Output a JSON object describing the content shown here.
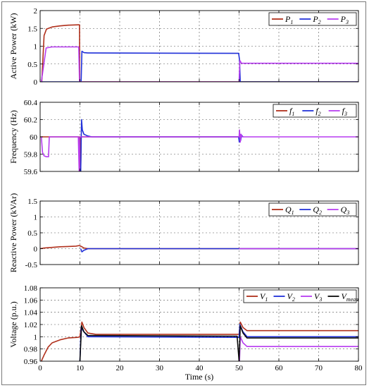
{
  "chart_data": [
    {
      "type": "line",
      "ylabel": "Active Power (kW)",
      "xlabel": "",
      "xlim": [
        0,
        80
      ],
      "ylim": [
        0,
        2
      ],
      "yticks": [
        0,
        0.5,
        1,
        1.5,
        2
      ],
      "ytick_labels": [
        "0",
        "0.5",
        "1",
        "1.5",
        "2"
      ],
      "grid": true,
      "legend_position": "top-right",
      "series": [
        {
          "name": "P",
          "sub": "1",
          "color": "#b0301c",
          "points": [
            [
              0,
              0
            ],
            [
              0.4,
              0
            ],
            [
              1,
              1.3
            ],
            [
              1.6,
              1.48
            ],
            [
              3,
              1.54
            ],
            [
              5,
              1.57
            ],
            [
              7,
              1.59
            ],
            [
              9.5,
              1.6
            ],
            [
              9.9,
              1.6
            ],
            [
              9.95,
              0
            ],
            [
              80,
              0
            ]
          ]
        },
        {
          "name": "P",
          "sub": "2",
          "color": "#1f2fd8",
          "points": [
            [
              0,
              0
            ],
            [
              10.3,
              0
            ],
            [
              10.5,
              0.86
            ],
            [
              11,
              0.82
            ],
            [
              12,
              0.81
            ],
            [
              49.5,
              0.8
            ],
            [
              49.9,
              0.8
            ],
            [
              50.1,
              0.62
            ],
            [
              50.3,
              0
            ],
            [
              80,
              0
            ]
          ]
        },
        {
          "name": "P",
          "sub": "3",
          "color": "#b73cf0",
          "points": [
            [
              0,
              0
            ],
            [
              0.3,
              0
            ],
            [
              1.5,
              0.95
            ],
            [
              3,
              0.98
            ],
            [
              9.7,
              0.98
            ],
            [
              9.9,
              0
            ],
            [
              50,
              0
            ],
            [
              50.2,
              0.6
            ],
            [
              50.6,
              0.52
            ],
            [
              80,
              0.52
            ]
          ]
        }
      ]
    },
    {
      "type": "line",
      "ylabel": "Frequency (Hz)",
      "xlabel": "",
      "xlim": [
        0,
        80
      ],
      "ylim": [
        59.6,
        60.4
      ],
      "yticks": [
        59.6,
        59.8,
        60,
        60.2,
        60.4
      ],
      "ytick_labels": [
        "59.6",
        "59.8",
        "60",
        "60.2",
        "60.4"
      ],
      "grid": true,
      "legend_position": "top-right",
      "series": [
        {
          "name": "f",
          "sub": "1",
          "color": "#b0301c",
          "points": [
            [
              0,
              60
            ],
            [
              9.7,
              60
            ],
            [
              9.8,
              59.82
            ],
            [
              9.9,
              60
            ],
            [
              10.05,
              60
            ],
            [
              10.1,
              59.6
            ],
            [
              10.2,
              59.6
            ],
            [
              10.3,
              60
            ],
            [
              50,
              60
            ],
            [
              50.1,
              60.02
            ],
            [
              50.3,
              60
            ]
          ]
        },
        {
          "name": "f",
          "sub": "2",
          "color": "#1f2fd8",
          "points": [
            [
              10.2,
              59.6
            ],
            [
              10.4,
              60.2
            ],
            [
              10.6,
              60.08
            ],
            [
              11,
              60.03
            ],
            [
              12,
              60.01
            ],
            [
              13,
              60
            ],
            [
              49.9,
              60
            ],
            [
              50.05,
              59.94
            ],
            [
              50.2,
              60.03
            ],
            [
              50.4,
              59.96
            ],
            [
              50.6,
              60.02
            ],
            [
              51,
              60
            ]
          ]
        },
        {
          "name": "f",
          "sub": "3",
          "color": "#b73cf0",
          "points": [
            [
              0.3,
              60
            ],
            [
              0.6,
              59.82
            ],
            [
              1,
              59.78
            ],
            [
              1.6,
              59.77
            ],
            [
              2.1,
              59.77
            ],
            [
              2.3,
              60
            ],
            [
              9.6,
              60
            ],
            [
              9.8,
              59.6
            ],
            [
              9.9,
              59.6
            ],
            [
              9.95,
              60
            ],
            [
              50,
              60
            ],
            [
              50.1,
              60.08
            ],
            [
              50.3,
              59.94
            ],
            [
              50.5,
              60.03
            ],
            [
              50.8,
              60
            ],
            [
              80,
              60
            ]
          ]
        }
      ]
    },
    {
      "type": "line",
      "ylabel": "Reactive Power (kVAr)",
      "xlabel": "",
      "xlim": [
        0,
        80
      ],
      "ylim": [
        -0.5,
        1.5
      ],
      "yticks": [
        -0.5,
        0,
        0.5,
        1,
        1.5
      ],
      "ytick_labels": [
        "-0.5",
        "0",
        "0.5",
        "1",
        "1.5"
      ],
      "grid": true,
      "legend_position": "top-right",
      "series": [
        {
          "name": "Q",
          "sub": "1",
          "color": "#b0301c",
          "points": [
            [
              0,
              0
            ],
            [
              1,
              0.02
            ],
            [
              3,
              0.04
            ],
            [
              5,
              0.06
            ],
            [
              7,
              0.07
            ],
            [
              9,
              0.08
            ],
            [
              9.9,
              0.1
            ],
            [
              10,
              0.09
            ],
            [
              10.5,
              0.06
            ],
            [
              11,
              0.02
            ],
            [
              12,
              0
            ],
            [
              80,
              0
            ]
          ]
        },
        {
          "name": "Q",
          "sub": "2",
          "color": "#1f2fd8",
          "points": [
            [
              10.2,
              0
            ],
            [
              10.5,
              -0.1
            ],
            [
              11,
              -0.05
            ],
            [
              12,
              0
            ],
            [
              80,
              0
            ]
          ]
        },
        {
          "name": "Q",
          "sub": "3",
          "color": "#b73cf0",
          "points": [
            [
              50,
              0
            ],
            [
              80,
              0
            ]
          ]
        }
      ]
    },
    {
      "type": "line",
      "ylabel": "Voltage (p.u.)",
      "xlabel": "Time (s)",
      "xlim": [
        0,
        80
      ],
      "ylim": [
        0.96,
        1.08
      ],
      "yticks": [
        0.96,
        0.98,
        1,
        1.02,
        1.04,
        1.06,
        1.08
      ],
      "ytick_labels": [
        "0.96",
        "0.98",
        "1",
        "1.02",
        "1.04",
        "1.06",
        "1.08"
      ],
      "xticks": [
        0,
        10,
        20,
        30,
        40,
        50,
        60,
        70,
        80
      ],
      "xtick_labels": [
        "0",
        "10",
        "20",
        "30",
        "40",
        "50",
        "60",
        "70",
        "80"
      ],
      "grid": true,
      "legend_position": "top-right",
      "series": [
        {
          "name": "V",
          "sub": "1",
          "color": "#b0301c",
          "points": [
            [
              0.3,
              0.96
            ],
            [
              1,
              0.97
            ],
            [
              2,
              0.983
            ],
            [
              3,
              0.99
            ],
            [
              5,
              0.995
            ],
            [
              7,
              0.998
            ],
            [
              9.5,
              0.999
            ],
            [
              10,
              1.0
            ],
            [
              10.5,
              1.024
            ],
            [
              11,
              1.015
            ],
            [
              12,
              1.006
            ],
            [
              14,
              1.004
            ],
            [
              49.5,
              1.004
            ],
            [
              50,
              1.004
            ],
            [
              50.3,
              1.024
            ],
            [
              51,
              1.015
            ],
            [
              52,
              1.01
            ],
            [
              80,
              1.01
            ]
          ]
        },
        {
          "name": "V",
          "sub": "2",
          "color": "#1f2fd8",
          "points": [
            [
              10,
              0.96
            ],
            [
              10.3,
              1.015
            ],
            [
              11,
              1.008
            ],
            [
              12,
              1.0
            ],
            [
              49.5,
              0.999
            ],
            [
              50,
              0.999
            ],
            [
              50.2,
              1.02
            ],
            [
              51,
              1.008
            ],
            [
              52,
              1.0
            ],
            [
              80,
              1.0
            ]
          ]
        },
        {
          "name": "V",
          "sub": "3",
          "color": "#b73cf0",
          "points": [
            [
              50.1,
              0.96
            ],
            [
              50.3,
              1.0
            ],
            [
              51,
              0.99
            ],
            [
              52,
              0.984
            ],
            [
              80,
              0.984
            ]
          ]
        },
        {
          "name": "V",
          "sub": "mean",
          "color": "#0a0a0a",
          "points": [
            [
              10,
              0.96
            ],
            [
              10.4,
              1.018
            ],
            [
              11,
              1.008
            ],
            [
              12,
              1.002
            ],
            [
              49.5,
              1.001
            ],
            [
              50,
              0.96
            ],
            [
              50.3,
              1.018
            ],
            [
              51,
              1.006
            ],
            [
              52,
              0.998
            ],
            [
              80,
              0.998
            ]
          ]
        }
      ]
    }
  ]
}
